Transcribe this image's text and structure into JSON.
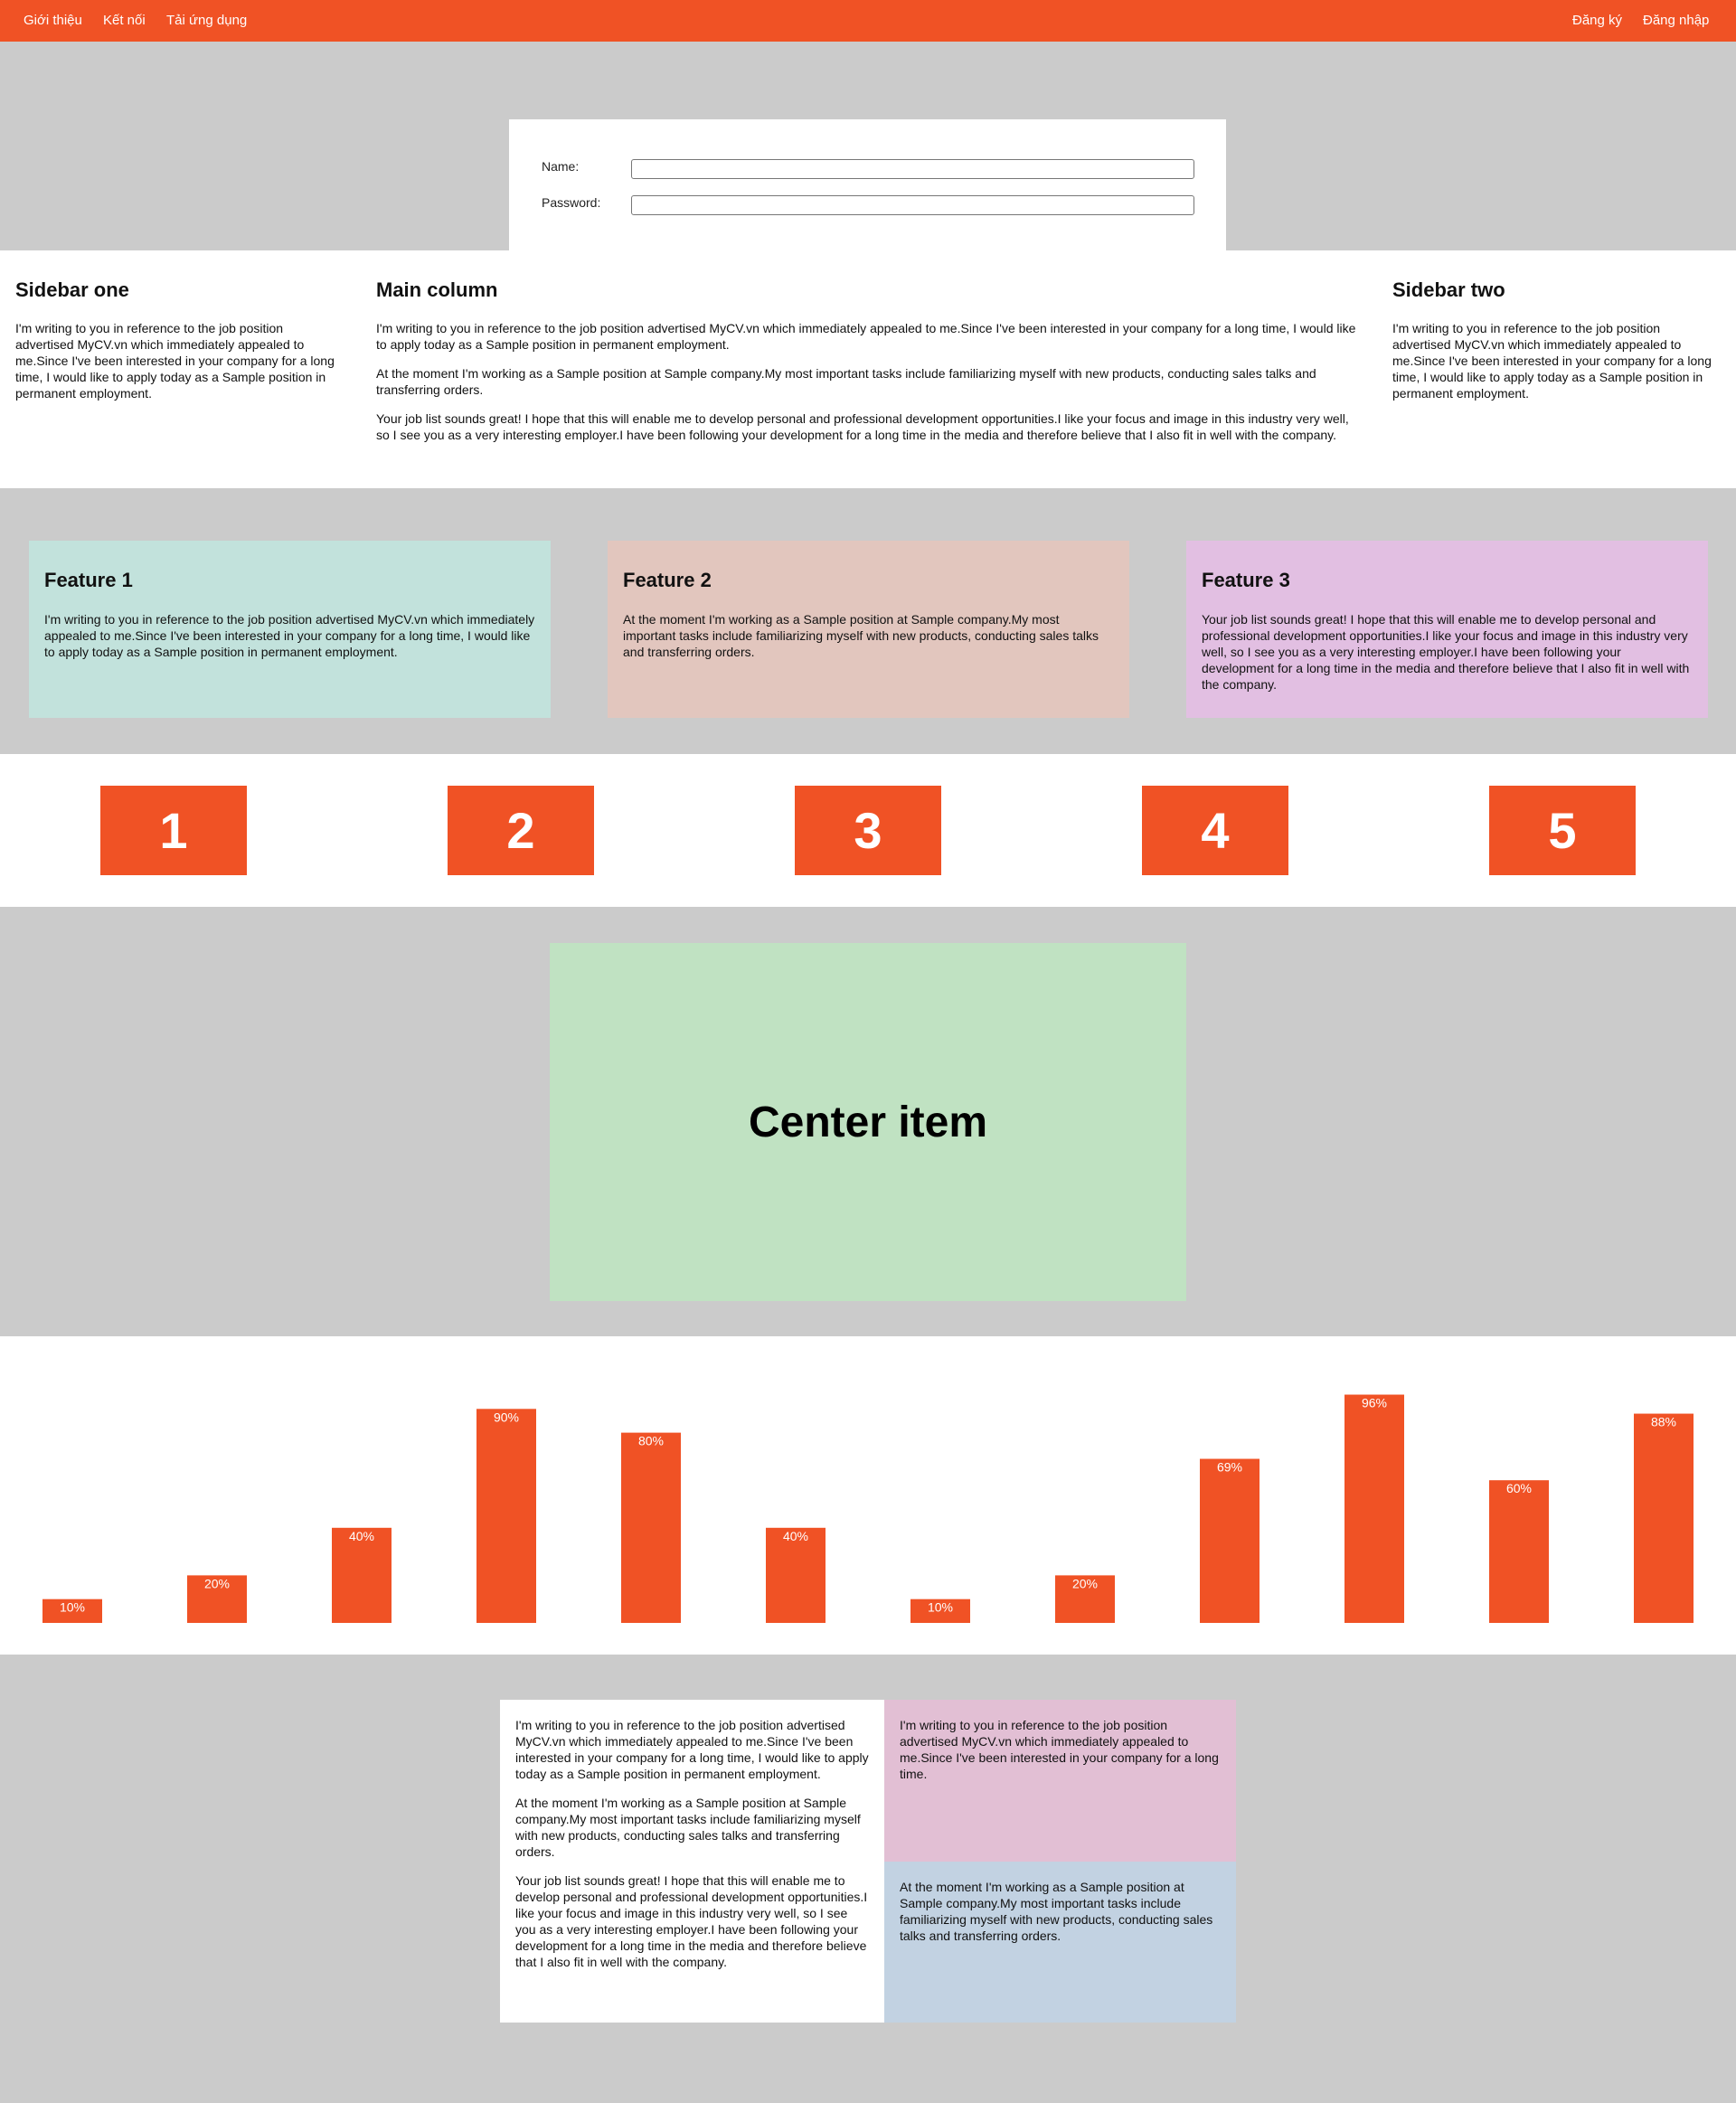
{
  "nav": {
    "left": [
      "Giới thiệu",
      "Kết nối",
      "Tải ứng dụng"
    ],
    "right": [
      "Đăng ký",
      "Đăng nhập"
    ],
    "background": "#f05225"
  },
  "login": {
    "name_label": "Name:",
    "password_label": "Password:",
    "name_value": "",
    "password_value": ""
  },
  "three_col": {
    "sidebar_one_title": "Sidebar one",
    "sidebar_one_text": "I'm writing to you in reference to the job position advertised MyCV.vn which immediately appealed to me.Since I've been interested in your company for a long time, I would like to apply today as a Sample position in permanent employment.",
    "main_title": "Main column",
    "main_paragraphs": [
      "I'm writing to you in reference to the job position advertised MyCV.vn which immediately appealed to me.Since I've been interested in your company for a long time, I would like to apply today as a Sample position in permanent employment.",
      "At the moment I'm working as a Sample position at Sample company.My most important tasks include familiarizing myself with new products, conducting sales talks and transferring orders.",
      "Your job list sounds great! I hope that this will enable me to develop personal and professional development opportunities.I like your focus and image in this industry very well, so I see you as a very interesting employer.I have been following your development for a long time in the media and therefore believe that I also fit in well with the company."
    ],
    "sidebar_two_title": "Sidebar two",
    "sidebar_two_text": "I'm writing to you in reference to the job position advertised MyCV.vn which immediately appealed to me.Since I've been interested in your company for a long time, I would like to apply today as a Sample position in permanent employment."
  },
  "features": [
    {
      "title": "Feature 1",
      "text": "I'm writing to you in reference to the job position advertised MyCV.vn which immediately appealed to me.Since I've been interested in your company for a long time, I would like to apply today as a Sample position in permanent employment.",
      "color": "#c2e2dc"
    },
    {
      "title": "Feature 2",
      "text": "At the moment I'm working as a Sample position at Sample company.My most important tasks include familiarizing myself with new products, conducting sales talks and transferring orders.",
      "color": "#e2c6be"
    },
    {
      "title": "Feature 3",
      "text": "Your job list sounds great! I hope that this will enable me to develop personal and professional development opportunities.I like your focus and image in this industry very well, so I see you as a very interesting employer.I have been following your development for a long time in the media and therefore believe that I also fit in well with the company.",
      "color": "#e2bfe2"
    }
  ],
  "numbers": [
    "1",
    "2",
    "3",
    "4",
    "5"
  ],
  "center": {
    "label": "Center item",
    "color": "#c0e2c2"
  },
  "chart_data": {
    "type": "bar",
    "values": [
      10,
      20,
      40,
      90,
      80,
      40,
      10,
      20,
      69,
      96,
      60,
      88
    ],
    "labels": [
      "10%",
      "20%",
      "40%",
      "90%",
      "80%",
      "40%",
      "10%",
      "20%",
      "69%",
      "96%",
      "60%",
      "88%"
    ],
    "ylim": [
      0,
      100
    ],
    "color": "#f05225"
  },
  "bottom": {
    "left_paragraphs": [
      "I'm writing to you in reference to the job position advertised MyCV.vn which immediately appealed to me.Since I've been interested in your company for a long time, I would like to apply today as a Sample position in permanent employment.",
      "At the moment I'm working as a Sample position at Sample company.My most important tasks include familiarizing myself with new products, conducting sales talks and transferring orders.",
      "Your job list sounds great! I hope that this will enable me to develop personal and professional development opportunities.I like your focus and image in this industry very well, so I see you as a very interesting employer.I have been following your development for a long time in the media and therefore believe that I also fit in well with the company."
    ],
    "top_right_text": "I'm writing to you in reference to the job position advertised MyCV.vn which immediately appealed to me.Since I've been interested in your company for a long time.",
    "bottom_right_text": "At the moment I'm working as a Sample position at Sample company.My most important tasks include familiarizing myself with new products, conducting sales talks and transferring orders.",
    "colors": {
      "left": "#ffffff",
      "top_right": "#e2bfd4",
      "bottom_right": "#c2d2e2"
    }
  }
}
